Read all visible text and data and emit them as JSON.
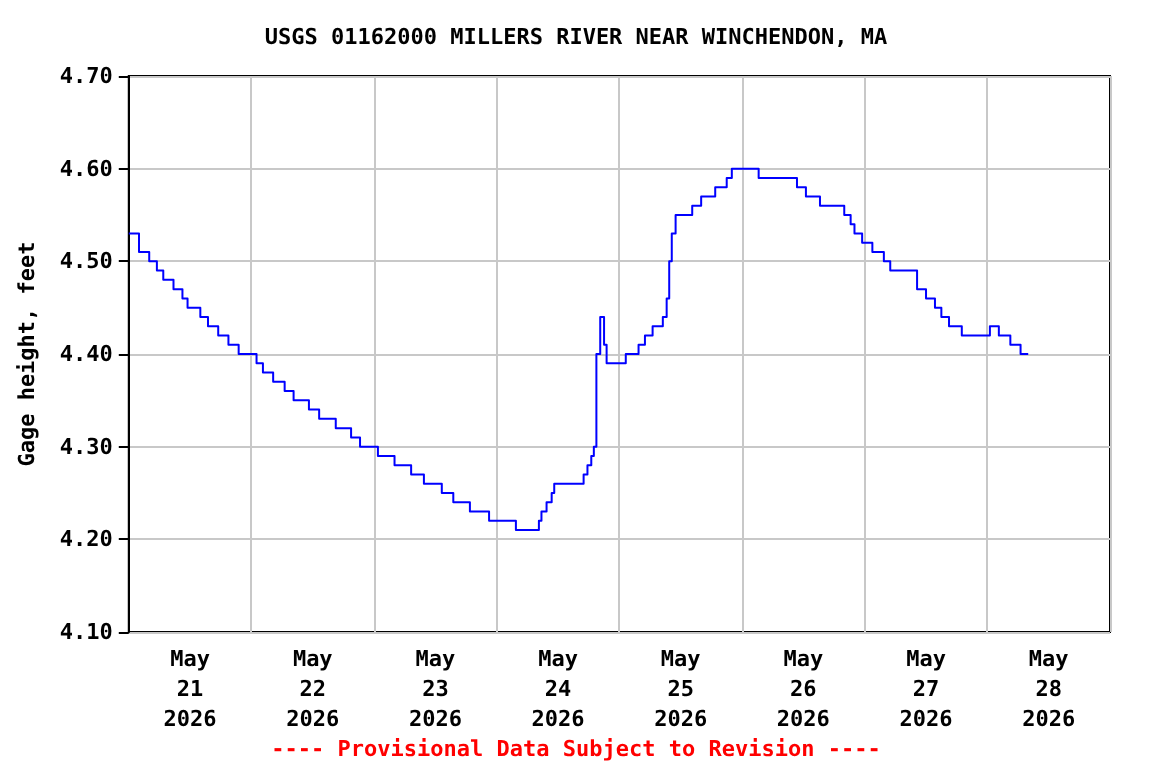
{
  "chart_data": {
    "type": "step",
    "title": "USGS 01162000 MILLERS RIVER NEAR WINCHENDON, MA",
    "ylabel": "Gage height, feet",
    "annotations": [
      "---- Provisional Data Subject to Revision ----"
    ],
    "grid": true,
    "marker": "none",
    "line_style": "solid",
    "xlim": [
      "2026-05-21T00:00",
      "2026-05-29T00:00"
    ],
    "xticks": [
      {
        "value": "2026-05-21T00:00",
        "label": null
      },
      {
        "value": "2026-05-21T12:00",
        "label": "May\n21\n2026"
      },
      {
        "value": "2026-05-22T00:00",
        "label": null
      },
      {
        "value": "2026-05-22T12:00",
        "label": "May\n22\n2026"
      },
      {
        "value": "2026-05-23T00:00",
        "label": null
      },
      {
        "value": "2026-05-23T12:00",
        "label": "May\n23\n2026"
      },
      {
        "value": "2026-05-24T00:00",
        "label": null
      },
      {
        "value": "2026-05-24T12:00",
        "label": "May\n24\n2026"
      },
      {
        "value": "2026-05-25T00:00",
        "label": null
      },
      {
        "value": "2026-05-25T12:00",
        "label": "May\n25\n2026"
      },
      {
        "value": "2026-05-26T00:00",
        "label": null
      },
      {
        "value": "2026-05-26T12:00",
        "label": "May\n26\n2026"
      },
      {
        "value": "2026-05-27T00:00",
        "label": null
      },
      {
        "value": "2026-05-27T12:00",
        "label": "May\n27\n2026"
      },
      {
        "value": "2026-05-28T00:00",
        "label": null
      },
      {
        "value": "2026-05-28T12:00",
        "label": "May\n28\n2026"
      },
      {
        "value": "2026-05-29T00:00",
        "label": null
      }
    ],
    "ylim": [
      4.1,
      4.7
    ],
    "yticks": [
      {
        "value": 4.1,
        "label": "4.10"
      },
      {
        "value": 4.2,
        "label": "4.20"
      },
      {
        "value": 4.3,
        "label": "4.30"
      },
      {
        "value": 4.4,
        "label": "4.40"
      },
      {
        "value": 4.5,
        "label": "4.50"
      },
      {
        "value": 4.6,
        "label": "4.60"
      },
      {
        "value": 4.7,
        "label": "4.70"
      }
    ],
    "series": [
      {
        "color": "#0000ff",
        "x": [
          "2026-05-21T00:00",
          "2026-05-21T02:00",
          "2026-05-21T04:00",
          "2026-05-21T05:30",
          "2026-05-21T06:45",
          "2026-05-21T08:45",
          "2026-05-21T10:30",
          "2026-05-21T11:30",
          "2026-05-21T14:00",
          "2026-05-21T15:30",
          "2026-05-21T17:30",
          "2026-05-21T19:30",
          "2026-05-21T21:30",
          "2026-05-22T01:00",
          "2026-05-22T02:15",
          "2026-05-22T04:15",
          "2026-05-22T06:30",
          "2026-05-22T08:15",
          "2026-05-22T11:15",
          "2026-05-22T13:15",
          "2026-05-22T16:30",
          "2026-05-22T19:30",
          "2026-05-22T21:15",
          "2026-05-23T00:45",
          "2026-05-23T04:00",
          "2026-05-23T07:15",
          "2026-05-23T09:45",
          "2026-05-23T13:15",
          "2026-05-23T15:30",
          "2026-05-23T18:45",
          "2026-05-23T22:30",
          "2026-05-24T03:45",
          "2026-05-24T08:15",
          "2026-05-24T08:45",
          "2026-05-24T09:45",
          "2026-05-24T10:45",
          "2026-05-24T11:15",
          "2026-05-24T17:00",
          "2026-05-24T17:45",
          "2026-05-24T18:30",
          "2026-05-24T19:00",
          "2026-05-24T19:30",
          "2026-05-24T20:15",
          "2026-05-24T21:00",
          "2026-05-24T21:30",
          "2026-05-25T01:15",
          "2026-05-25T03:45",
          "2026-05-25T05:00",
          "2026-05-25T06:30",
          "2026-05-25T08:30",
          "2026-05-25T09:15",
          "2026-05-25T09:45",
          "2026-05-25T10:15",
          "2026-05-25T11:00",
          "2026-05-25T14:15",
          "2026-05-25T16:00",
          "2026-05-25T18:45",
          "2026-05-25T21:00",
          "2026-05-25T22:00",
          "2026-05-26T03:15",
          "2026-05-26T10:45",
          "2026-05-26T12:30",
          "2026-05-26T15:15",
          "2026-05-26T20:00",
          "2026-05-26T21:15",
          "2026-05-26T22:00",
          "2026-05-26T23:30",
          "2026-05-27T01:30",
          "2026-05-27T03:45",
          "2026-05-27T05:00",
          "2026-05-27T10:15",
          "2026-05-27T12:00",
          "2026-05-27T13:45",
          "2026-05-27T15:00",
          "2026-05-27T16:30",
          "2026-05-27T19:00",
          "2026-05-28T00:30",
          "2026-05-28T02:15",
          "2026-05-28T04:30",
          "2026-05-28T06:30",
          "2026-05-28T08:00"
        ],
        "values": [
          4.53,
          4.51,
          4.5,
          4.49,
          4.48,
          4.47,
          4.46,
          4.45,
          4.44,
          4.43,
          4.42,
          4.41,
          4.4,
          4.39,
          4.38,
          4.37,
          4.36,
          4.35,
          4.34,
          4.33,
          4.32,
          4.31,
          4.3,
          4.29,
          4.28,
          4.27,
          4.26,
          4.25,
          4.24,
          4.23,
          4.22,
          4.21,
          4.22,
          4.23,
          4.24,
          4.25,
          4.26,
          4.27,
          4.28,
          4.29,
          4.3,
          4.4,
          4.44,
          4.41,
          4.39,
          4.4,
          4.41,
          4.42,
          4.43,
          4.44,
          4.46,
          4.5,
          4.53,
          4.55,
          4.56,
          4.57,
          4.58,
          4.59,
          4.6,
          4.59,
          4.58,
          4.57,
          4.56,
          4.55,
          4.54,
          4.53,
          4.52,
          4.51,
          4.5,
          4.49,
          4.47,
          4.46,
          4.45,
          4.44,
          4.43,
          4.42,
          4.43,
          4.42,
          4.41,
          4.4,
          4.4
        ]
      }
    ]
  }
}
